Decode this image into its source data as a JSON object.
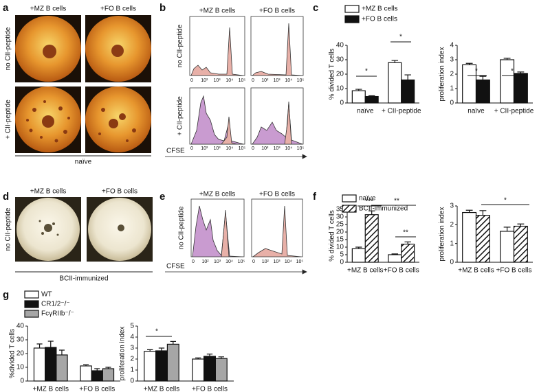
{
  "figure": {
    "a": {
      "letter": "a",
      "columns": [
        "+MZ B cells",
        "+FO B cells"
      ],
      "rows": [
        "no CII-peptide",
        "+ CII-peptide"
      ],
      "footer": "naïve"
    },
    "b": {
      "letter": "b",
      "columns": [
        "+MZ B cells",
        "+FO B cells"
      ],
      "rows": [
        "no CII-peptide",
        "+ CII-peptide"
      ],
      "xlabel": "CFSE",
      "ticks": [
        "0",
        "10²",
        "10³",
        "10⁴",
        "10⁵"
      ]
    },
    "c": {
      "letter": "c"
    },
    "d": {
      "letter": "d",
      "columns": [
        "+MZ B cells",
        "+FO B cells"
      ],
      "row": "no CII-peptide",
      "footer": "BCII-immunized"
    },
    "e": {
      "letter": "e",
      "columns": [
        "+MZ B cells",
        "+FO B cells"
      ],
      "row": "no CII-peptide",
      "xlabel": "CFSE",
      "ticks": [
        "0",
        "10²",
        "10³",
        "10⁴",
        "10⁵"
      ]
    },
    "f": {
      "letter": "f"
    },
    "g": {
      "letter": "g"
    }
  },
  "chart_data": [
    {
      "type": "bar",
      "ylabel": "% divided T cells",
      "categories": [
        "naïve",
        "+ CII-peptide"
      ],
      "series": [
        {
          "name": "+MZ B cells",
          "color": "#ffffff",
          "values": [
            8.5,
            28
          ],
          "errors": [
            1,
            1.5
          ]
        },
        {
          "name": "+FO B cells",
          "color": "#111111",
          "values": [
            4.5,
            16
          ],
          "errors": [
            0.5,
            3.5
          ]
        }
      ],
      "ylim": [
        0,
        40
      ],
      "yticks": [
        0,
        10,
        20,
        30,
        40
      ],
      "annotations": [
        "*",
        "*"
      ]
    },
    {
      "type": "bar",
      "ylabel": "proliferation index",
      "categories": [
        "naïve",
        "+ CII-peptide"
      ],
      "series": [
        {
          "color": "#ffffff",
          "values": [
            2.65,
            3.0
          ],
          "errors": [
            0.1,
            0.1
          ]
        },
        {
          "color": "#111111",
          "values": [
            1.6,
            2.05
          ],
          "errors": [
            0.25,
            0.1
          ]
        }
      ],
      "ylim": [
        0,
        4
      ],
      "yticks": [
        0,
        1,
        2,
        3,
        4
      ],
      "annotations": [
        "*",
        "*"
      ]
    },
    {
      "type": "bar",
      "ylabel": "% divided T cells",
      "categories": [
        "+MZ B cells",
        "+FO B cells"
      ],
      "series": [
        {
          "name": "naïve",
          "color": "#ffffff",
          "values": [
            9,
            5
          ],
          "errors": [
            1,
            0.5
          ]
        },
        {
          "name": "BCII-immunized",
          "color": "#ffffff",
          "hatch": true,
          "values": [
            31.5,
            12
          ],
          "errors": [
            2.5,
            1.5
          ]
        }
      ],
      "ylim": [
        0,
        35
      ],
      "yticks": [
        0,
        5,
        10,
        15,
        20,
        25,
        30,
        35
      ],
      "annotations": [
        "***",
        "**",
        "**"
      ]
    },
    {
      "type": "bar",
      "ylabel": "proliferation index",
      "categories": [
        "+MZ B cells",
        "+FO B cells"
      ],
      "series": [
        {
          "color": "#ffffff",
          "values": [
            2.65,
            1.65
          ],
          "errors": [
            0.12,
            0.22
          ]
        },
        {
          "color": "#ffffff",
          "hatch": true,
          "values": [
            2.5,
            1.92
          ],
          "errors": [
            0.25,
            0.12
          ]
        }
      ],
      "ylim": [
        0,
        3
      ],
      "yticks": [
        0,
        1,
        2,
        3
      ],
      "annotations": [
        "*"
      ]
    },
    {
      "type": "bar",
      "ylabel": "%divided T cells",
      "categories": [
        "+MZ B cells",
        "+FO B cells"
      ],
      "series": [
        {
          "name": "WT",
          "color": "#ffffff",
          "values": [
            24,
            11
          ],
          "errors": [
            3,
            0.8
          ]
        },
        {
          "name": "CR1/2⁻/⁻",
          "color": "#111111",
          "values": [
            24.5,
            7.5
          ],
          "errors": [
            4.5,
            1.5
          ]
        },
        {
          "name": "FcγRIIb⁻/⁻",
          "color": "#a6a6a6",
          "values": [
            19,
            9
          ],
          "errors": [
            3.5,
            1
          ]
        }
      ],
      "ylim": [
        0,
        40
      ],
      "yticks": [
        0,
        10,
        20,
        30,
        40
      ],
      "annotations": []
    },
    {
      "type": "bar",
      "ylabel": "proliferation index",
      "categories": [
        "+MZ B cells",
        "+FO B cells"
      ],
      "series": [
        {
          "color": "#ffffff",
          "values": [
            2.7,
            2.0
          ],
          "errors": [
            0.15,
            0.1
          ]
        },
        {
          "color": "#111111",
          "values": [
            2.75,
            2.25
          ],
          "errors": [
            0.25,
            0.2
          ]
        },
        {
          "color": "#a6a6a6",
          "values": [
            3.35,
            2.05
          ],
          "errors": [
            0.25,
            0.15
          ]
        }
      ],
      "ylim": [
        0,
        5
      ],
      "yticks": [
        0,
        1,
        2,
        3,
        4,
        5
      ],
      "annotations": [
        "*"
      ]
    }
  ]
}
